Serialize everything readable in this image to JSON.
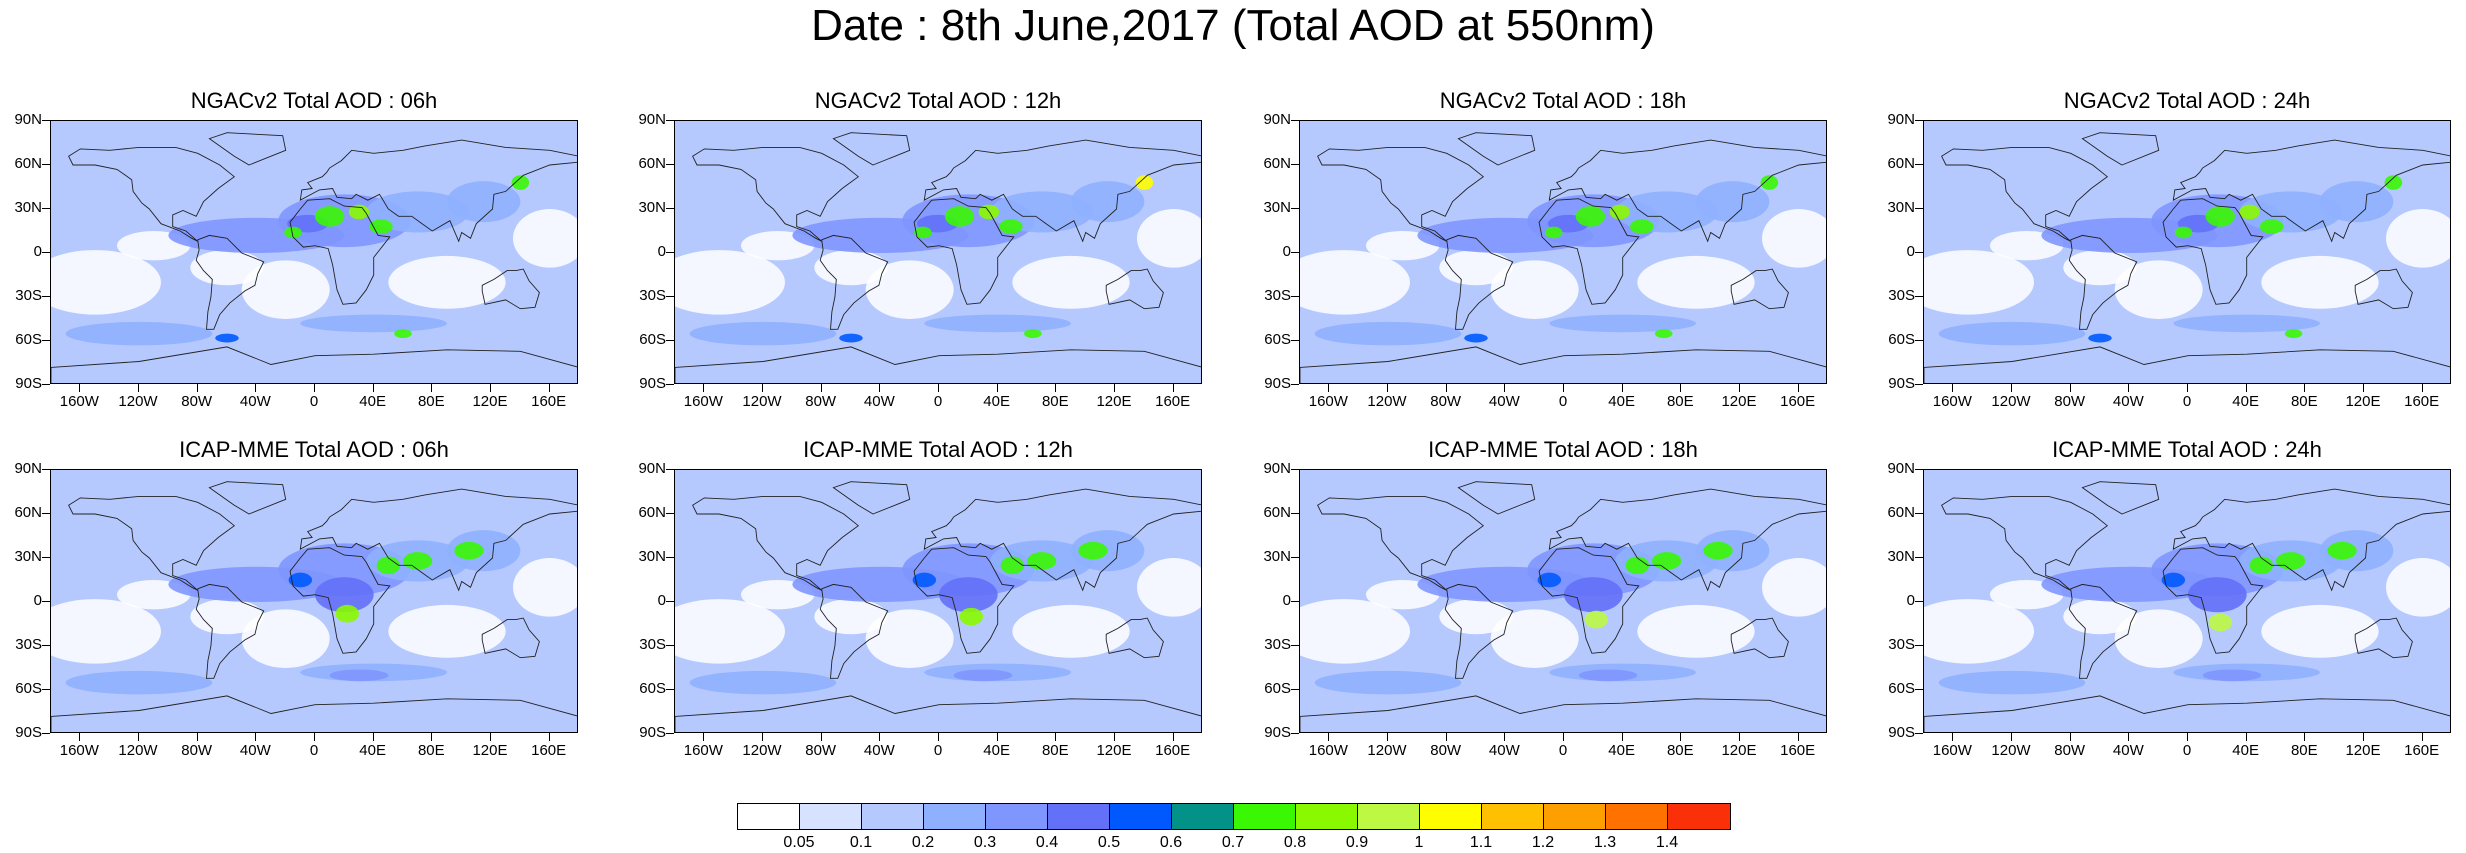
{
  "title": "Date : 8th June,2017 (Total AOD at 550nm)",
  "lat_labels": [
    "90N",
    "60N",
    "30N",
    "0",
    "30S",
    "60S",
    "90S"
  ],
  "lon_labels": [
    "160W",
    "120W",
    "80W",
    "40W",
    "0",
    "40E",
    "80E",
    "120E",
    "160E"
  ],
  "panels": [
    {
      "title": "NGACv2 Total AOD : 06h"
    },
    {
      "title": "NGACv2 Total AOD : 12h"
    },
    {
      "title": "NGACv2 Total AOD : 18h"
    },
    {
      "title": "NGACv2 Total AOD : 24h"
    },
    {
      "title": "ICAP-MME Total AOD : 06h"
    },
    {
      "title": "ICAP-MME Total AOD : 12h"
    },
    {
      "title": "ICAP-MME Total AOD : 18h"
    },
    {
      "title": "ICAP-MME Total AOD : 24h"
    }
  ],
  "colorbar": {
    "levels": [
      "0.05",
      "0.1",
      "0.2",
      "0.3",
      "0.4",
      "0.5",
      "0.6",
      "0.7",
      "0.8",
      "0.9",
      "1",
      "1.1",
      "1.2",
      "1.3",
      "1.4"
    ],
    "colors": [
      "#ffffff",
      "#d6e2ff",
      "#b5c9ff",
      "#8fb0ff",
      "#7f96ff",
      "#6370f8",
      "#0059ff",
      "#029288",
      "#3af703",
      "#8af900",
      "#bdf843",
      "#fffd00",
      "#fec000",
      "#fe9f00",
      "#ff7200",
      "#fa3009"
    ]
  }
}
